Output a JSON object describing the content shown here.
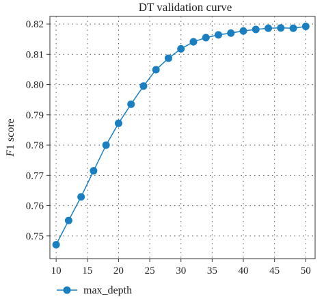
{
  "chart_data": {
    "type": "line",
    "title": "DT validation curve",
    "xlabel": "",
    "ylabel": "F1 score",
    "ylabel_italic": "F",
    "ylabel_rest": "1 score",
    "xlim": [
      9,
      51.5
    ],
    "ylim": [
      0.7425,
      0.8225
    ],
    "x_ticks": [
      10,
      15,
      20,
      25,
      30,
      35,
      40,
      45,
      50
    ],
    "y_ticks": [
      0.75,
      0.76,
      0.77,
      0.78,
      0.79,
      0.8,
      0.81,
      0.82
    ],
    "y_tick_labels": [
      "0.75",
      "0.76",
      "0.77",
      "0.78",
      "0.79",
      "0.80",
      "0.81",
      "0.82"
    ],
    "grid": true,
    "legend_position": "bottom-left",
    "series": [
      {
        "name": "max_depth",
        "color": "#1a7fc1",
        "x": [
          10,
          12,
          14,
          16,
          18,
          20,
          22,
          24,
          26,
          28,
          30,
          32,
          34,
          36,
          38,
          40,
          42,
          44,
          46,
          48,
          50
        ],
        "y": [
          0.7471,
          0.7551,
          0.7629,
          0.7715,
          0.78,
          0.7872,
          0.7935,
          0.7995,
          0.8049,
          0.8087,
          0.8118,
          0.8141,
          0.8155,
          0.8164,
          0.817,
          0.8177,
          0.8182,
          0.8186,
          0.8187,
          0.8186,
          0.8192
        ]
      }
    ]
  }
}
